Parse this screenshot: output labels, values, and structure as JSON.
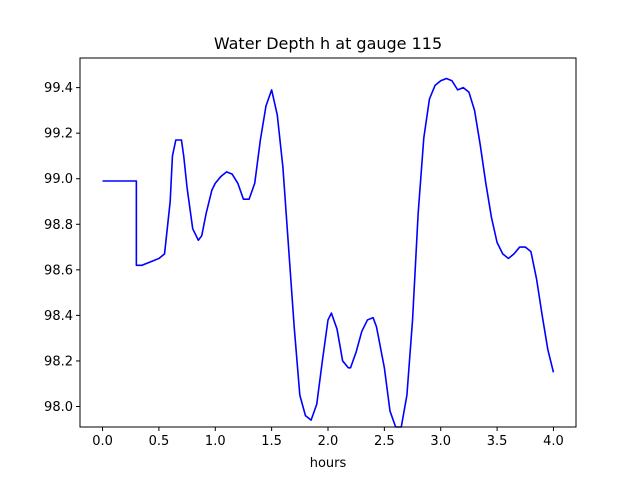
{
  "chart_data": {
    "type": "line",
    "title": "Water Depth h at gauge 115",
    "xlabel": "hours",
    "ylabel": "",
    "xlim": [
      -0.2,
      4.2
    ],
    "ylim": [
      97.91,
      99.53
    ],
    "xticks": [
      0.0,
      0.5,
      1.0,
      1.5,
      2.0,
      2.5,
      3.0,
      3.5,
      4.0
    ],
    "xtick_labels": [
      "0.0",
      "0.5",
      "1.0",
      "1.5",
      "2.0",
      "2.5",
      "3.0",
      "3.5",
      "4.0"
    ],
    "yticks": [
      98.0,
      98.2,
      98.4,
      98.6,
      98.8,
      99.0,
      99.2,
      99.4
    ],
    "ytick_labels": [
      "98.0",
      "98.2",
      "98.4",
      "98.6",
      "98.8",
      "99.0",
      "99.2",
      "99.4"
    ],
    "grid": false,
    "series": [
      {
        "color": "#0000ff",
        "x": [
          0.0,
          0.1,
          0.2,
          0.3,
          0.3,
          0.35,
          0.4,
          0.45,
          0.5,
          0.55,
          0.6,
          0.62,
          0.65,
          0.7,
          0.72,
          0.75,
          0.8,
          0.85,
          0.88,
          0.92,
          0.97,
          1.0,
          1.05,
          1.1,
          1.15,
          1.2,
          1.25,
          1.3,
          1.35,
          1.4,
          1.45,
          1.5,
          1.55,
          1.6,
          1.65,
          1.7,
          1.75,
          1.8,
          1.85,
          1.9,
          1.95,
          2.0,
          2.03,
          2.08,
          2.13,
          2.18,
          2.2,
          2.25,
          2.3,
          2.35,
          2.4,
          2.43,
          2.5,
          2.55,
          2.6,
          2.65,
          2.7,
          2.75,
          2.8,
          2.85,
          2.9,
          2.95,
          3.0,
          3.05,
          3.1,
          3.15,
          3.2,
          3.25,
          3.3,
          3.35,
          3.4,
          3.45,
          3.5,
          3.55,
          3.6,
          3.65,
          3.7,
          3.75,
          3.8,
          3.85,
          3.9,
          3.95,
          4.0
        ],
        "y": [
          98.99,
          98.99,
          98.99,
          98.99,
          98.62,
          98.62,
          98.63,
          98.64,
          98.65,
          98.67,
          98.9,
          99.1,
          99.17,
          99.17,
          99.1,
          98.96,
          98.78,
          98.73,
          98.75,
          98.85,
          98.95,
          98.98,
          99.01,
          99.03,
          99.02,
          98.98,
          98.91,
          98.91,
          98.98,
          99.17,
          99.32,
          99.39,
          99.28,
          99.05,
          98.7,
          98.35,
          98.05,
          97.96,
          97.94,
          98.01,
          98.2,
          98.38,
          98.41,
          98.34,
          98.2,
          98.17,
          98.17,
          98.24,
          98.33,
          98.38,
          98.39,
          98.35,
          98.17,
          97.98,
          97.91,
          97.91,
          98.05,
          98.38,
          98.85,
          99.18,
          99.35,
          99.41,
          99.43,
          99.44,
          99.43,
          99.39,
          99.4,
          99.38,
          99.3,
          99.15,
          98.98,
          98.83,
          98.72,
          98.67,
          98.65,
          98.67,
          98.7,
          98.7,
          98.68,
          98.56,
          98.4,
          98.25,
          98.15
        ]
      }
    ]
  }
}
